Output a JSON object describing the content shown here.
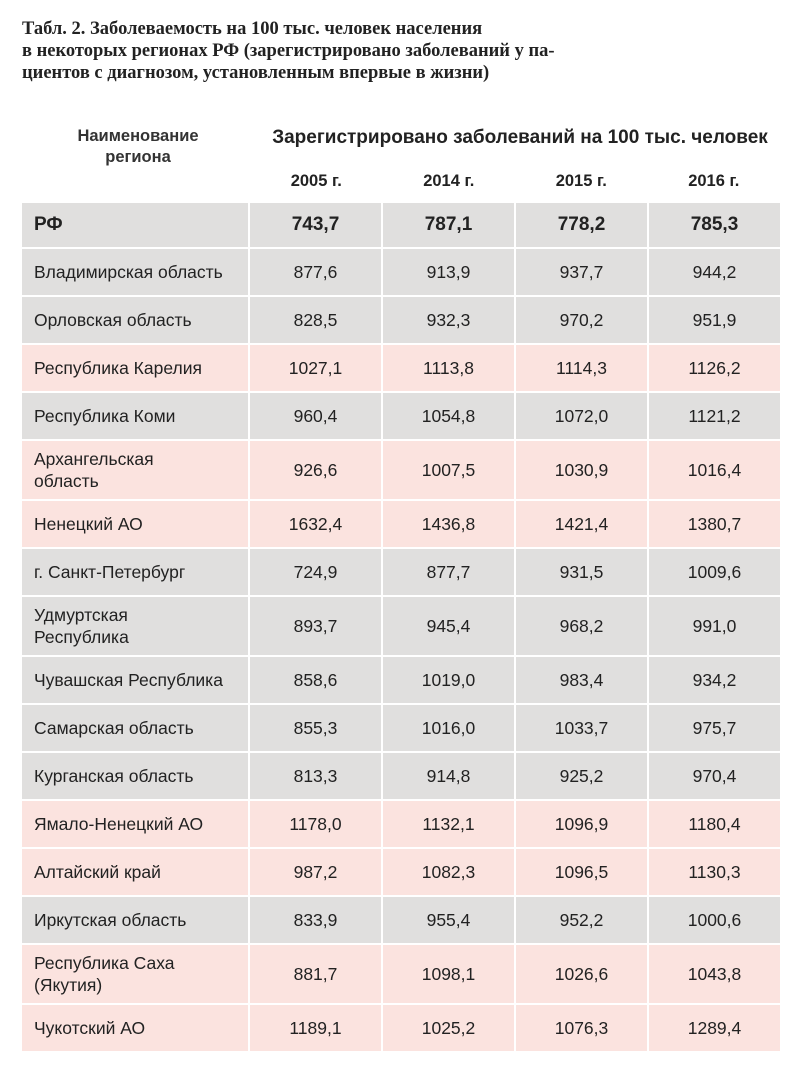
{
  "caption": [
    "Табл. 2. Заболеваемость на 100 тыс. человек населения",
    "в некоторых регионах РФ (зарегистрировано заболеваний у па-",
    "циентов с диагнозом, установленным впервые в жизни)"
  ],
  "header": {
    "region": [
      "Наименование",
      "региона"
    ],
    "group": "Зарегистрировано заболеваний на 100 тыс. человек",
    "years": [
      "2005 г.",
      "2014 г.",
      "2015 г.",
      "2016 г."
    ]
  },
  "rows": [
    {
      "name": [
        "РФ"
      ],
      "values": [
        "743,7",
        "787,1",
        "778,2",
        "785,3"
      ],
      "bg": "gray",
      "bold": true
    },
    {
      "name": [
        "Владимирская область"
      ],
      "values": [
        "877,6",
        "913,9",
        "937,7",
        "944,2"
      ],
      "bg": "gray"
    },
    {
      "name": [
        "Орловская область"
      ],
      "values": [
        "828,5",
        "932,3",
        "970,2",
        "951,9"
      ],
      "bg": "gray"
    },
    {
      "name": [
        "Республика Карелия"
      ],
      "values": [
        "1027,1",
        "1113,8",
        "1114,3",
        "1126,2"
      ],
      "bg": "pink"
    },
    {
      "name": [
        "Республика Коми"
      ],
      "values": [
        "960,4",
        "1054,8",
        "1072,0",
        "1121,2"
      ],
      "bg": "gray"
    },
    {
      "name": [
        "Архангельская",
        "область"
      ],
      "values": [
        "926,6",
        "1007,5",
        "1030,9",
        "1016,4"
      ],
      "bg": "pink"
    },
    {
      "name": [
        "Ненецкий АО"
      ],
      "values": [
        "1632,4",
        "1436,8",
        "1421,4",
        "1380,7"
      ],
      "bg": "pink"
    },
    {
      "name": [
        "г. Санкт-Петербург"
      ],
      "values": [
        "724,9",
        "877,7",
        "931,5",
        "1009,6"
      ],
      "bg": "gray"
    },
    {
      "name": [
        "Удмуртская",
        "Республика"
      ],
      "values": [
        "893,7",
        "945,4",
        "968,2",
        "991,0"
      ],
      "bg": "gray"
    },
    {
      "name": [
        "Чувашская Республика"
      ],
      "values": [
        "858,6",
        "1019,0",
        "983,4",
        "934,2"
      ],
      "bg": "gray"
    },
    {
      "name": [
        "Самарская область"
      ],
      "values": [
        "855,3",
        "1016,0",
        "1033,7",
        "975,7"
      ],
      "bg": "gray"
    },
    {
      "name": [
        "Курганская область"
      ],
      "values": [
        "813,3",
        "914,8",
        "925,2",
        "970,4"
      ],
      "bg": "gray"
    },
    {
      "name": [
        "Ямало-Ненецкий АО"
      ],
      "values": [
        "1178,0",
        "1132,1",
        "1096,9",
        "1180,4"
      ],
      "bg": "pink"
    },
    {
      "name": [
        "Алтайский край"
      ],
      "values": [
        "987,2",
        "1082,3",
        "1096,5",
        "1130,3"
      ],
      "bg": "pink"
    },
    {
      "name": [
        "Иркутская область"
      ],
      "values": [
        "833,9",
        "955,4",
        "952,2",
        "1000,6"
      ],
      "bg": "gray"
    },
    {
      "name": [
        "Республика Саха",
        "(Якутия)"
      ],
      "values": [
        "881,7",
        "1098,1",
        "1026,6",
        "1043,8"
      ],
      "bg": "pink"
    },
    {
      "name": [
        "Чукотский АО"
      ],
      "values": [
        "1189,1",
        "1025,2",
        "1076,3",
        "1289,4"
      ],
      "bg": "pink"
    }
  ]
}
